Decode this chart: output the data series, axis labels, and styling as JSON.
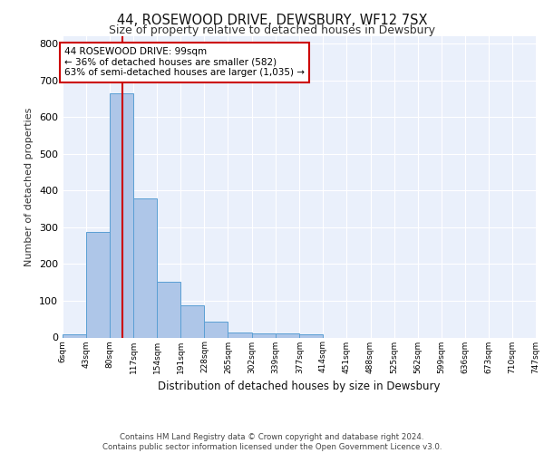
{
  "title": "44, ROSEWOOD DRIVE, DEWSBURY, WF12 7SX",
  "subtitle": "Size of property relative to detached houses in Dewsbury",
  "xlabel": "Distribution of detached houses by size in Dewsbury",
  "ylabel": "Number of detached properties",
  "bar_color": "#aec6e8",
  "bar_edge_color": "#5a9fd4",
  "background_color": "#eaf0fb",
  "grid_color": "#ffffff",
  "property_line_color": "#cc0000",
  "property_size": 99,
  "bin_edges": [
    6,
    43,
    80,
    117,
    154,
    191,
    228,
    265,
    302,
    339,
    377,
    414,
    451,
    488,
    525,
    562,
    599,
    636,
    673,
    710,
    747
  ],
  "bar_heights": [
    8,
    287,
    665,
    378,
    152,
    88,
    44,
    13,
    12,
    10,
    8,
    0,
    0,
    0,
    0,
    0,
    0,
    0,
    0,
    0
  ],
  "annotation_text": "44 ROSEWOOD DRIVE: 99sqm\n← 36% of detached houses are smaller (582)\n63% of semi-detached houses are larger (1,035) →",
  "annotation_box_color": "#ffffff",
  "annotation_box_edge": "#cc0000",
  "footer_text": "Contains HM Land Registry data © Crown copyright and database right 2024.\nContains public sector information licensed under the Open Government Licence v3.0.",
  "ylim": [
    0,
    820
  ],
  "yticks": [
    0,
    100,
    200,
    300,
    400,
    500,
    600,
    700,
    800
  ],
  "tick_labels": [
    "6sqm",
    "43sqm",
    "80sqm",
    "117sqm",
    "154sqm",
    "191sqm",
    "228sqm",
    "265sqm",
    "302sqm",
    "339sqm",
    "377sqm",
    "414sqm",
    "451sqm",
    "488sqm",
    "525sqm",
    "562sqm",
    "599sqm",
    "636sqm",
    "673sqm",
    "710sqm",
    "747sqm"
  ]
}
